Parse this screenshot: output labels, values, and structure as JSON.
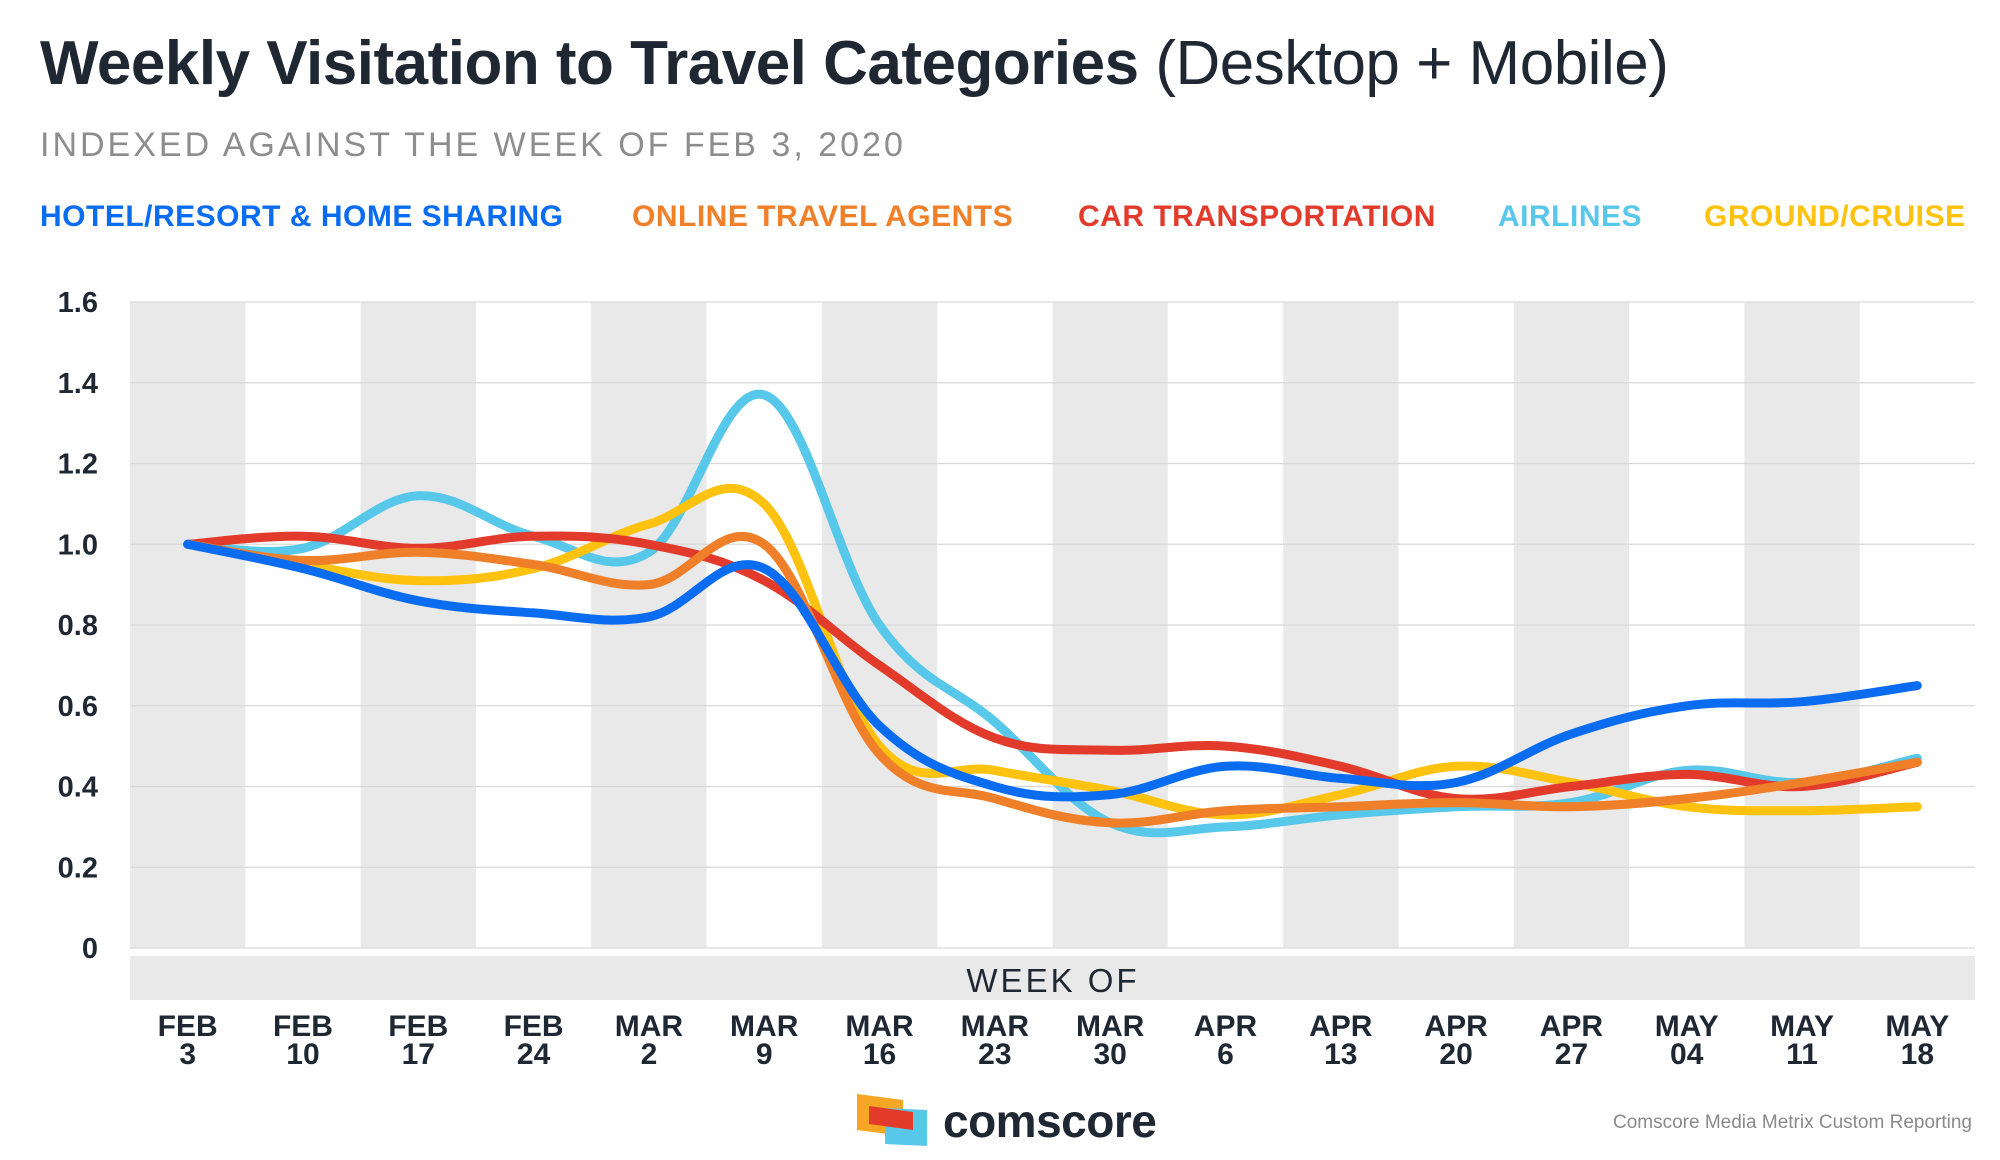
{
  "header": {
    "title_bold": "Weekly Visitation to Travel Categories",
    "title_rest": "(Desktop + Mobile)",
    "subtitle": "INDEXED AGAINST THE WEEK OF FEB 3, 2020"
  },
  "colors": {
    "hotel": "#0a6cf0",
    "ota": "#f07f2a",
    "car": "#e23b2c",
    "airlines": "#57c7ea",
    "ground": "#ffc20e",
    "band": "#e9e9e9",
    "grid": "#d9d9d9",
    "text": "#1f2733"
  },
  "chart_data": {
    "type": "line",
    "title": "Weekly Visitation to Travel Categories (Desktop + Mobile)",
    "subtitle": "INDEXED AGAINST THE WEEK OF FEB 3, 2020",
    "xlabel": "WEEK OF",
    "ylabel": "",
    "ylim": [
      0,
      1.6
    ],
    "yticks": [
      "0",
      "0.2",
      "0.4",
      "0.6",
      "0.8",
      "1.0",
      "1.2",
      "1.4",
      "1.6"
    ],
    "ytick_values": [
      0,
      0.2,
      0.4,
      0.6,
      0.8,
      1.0,
      1.2,
      1.4,
      1.6
    ],
    "categories": [
      [
        "FEB",
        "3"
      ],
      [
        "FEB",
        "10"
      ],
      [
        "FEB",
        "17"
      ],
      [
        "FEB",
        "24"
      ],
      [
        "MAR",
        "2"
      ],
      [
        "MAR",
        "9"
      ],
      [
        "MAR",
        "16"
      ],
      [
        "MAR",
        "23"
      ],
      [
        "MAR",
        "30"
      ],
      [
        "APR",
        "6"
      ],
      [
        "APR",
        "13"
      ],
      [
        "APR",
        "20"
      ],
      [
        "APR",
        "27"
      ],
      [
        "MAY",
        "04"
      ],
      [
        "MAY",
        "11"
      ],
      [
        "MAY",
        "18"
      ]
    ],
    "legend_position": "top",
    "series": [
      {
        "key": "hotel",
        "name": "HOTEL/RESORT & HOME SHARING",
        "values": [
          1.0,
          0.94,
          0.86,
          0.83,
          0.82,
          0.94,
          0.55,
          0.4,
          0.38,
          0.45,
          0.42,
          0.41,
          0.53,
          0.6,
          0.61,
          0.65
        ]
      },
      {
        "key": "ota",
        "name": "ONLINE TRAVEL AGENTS",
        "values": [
          1.0,
          0.96,
          0.98,
          0.95,
          0.9,
          1.0,
          0.48,
          0.37,
          0.31,
          0.34,
          0.35,
          0.36,
          0.35,
          0.37,
          0.41,
          0.46
        ]
      },
      {
        "key": "car",
        "name": "CAR TRANSPORTATION",
        "values": [
          1.0,
          1.02,
          0.99,
          1.02,
          1.0,
          0.91,
          0.7,
          0.52,
          0.49,
          0.5,
          0.45,
          0.37,
          0.4,
          0.43,
          0.4,
          0.46
        ]
      },
      {
        "key": "airlines",
        "name": "AIRLINES",
        "values": [
          1.0,
          0.99,
          1.12,
          1.02,
          0.98,
          1.37,
          0.8,
          0.56,
          0.31,
          0.3,
          0.33,
          0.35,
          0.36,
          0.44,
          0.41,
          0.47
        ]
      },
      {
        "key": "ground",
        "name": "GROUND/CRUISE",
        "values": [
          1.0,
          0.95,
          0.91,
          0.94,
          1.05,
          1.1,
          0.5,
          0.44,
          0.39,
          0.33,
          0.38,
          0.45,
          0.41,
          0.35,
          0.34,
          0.35
        ]
      }
    ]
  },
  "footer": {
    "brand": "comscore",
    "source": "Comscore Media Metrix Custom Reporting"
  }
}
